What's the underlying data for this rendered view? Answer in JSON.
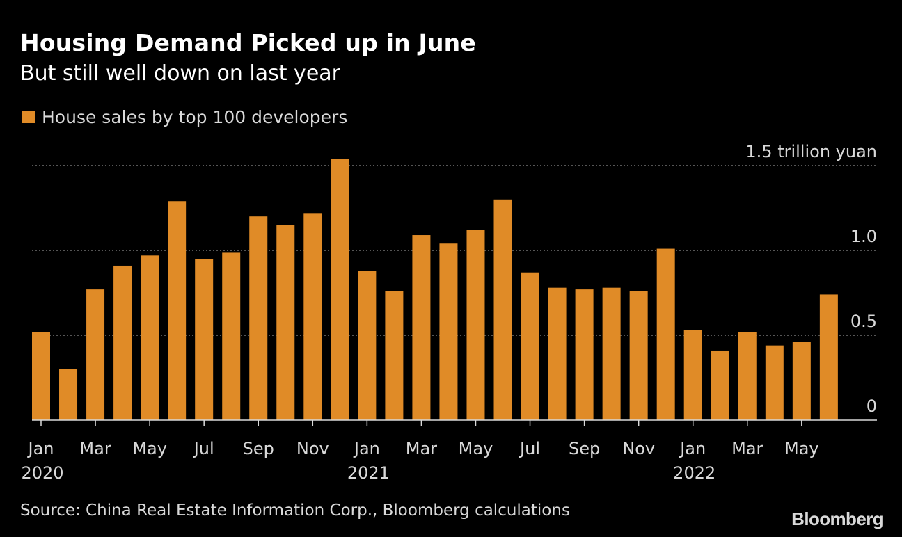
{
  "title": "Housing Demand Picked up in June",
  "subtitle": "But still well down on last year",
  "legend": {
    "label": "House sales by top 100 developers",
    "color": "#e08b27"
  },
  "source": "Source: China Real Estate Information Corp., Bloomberg calculations",
  "brand": "Bloomberg",
  "chart_data": {
    "type": "bar",
    "title": "Housing Demand Picked up in June",
    "subtitle": "But still well down on last year",
    "series": [
      {
        "name": "House sales by top 100 developers",
        "color": "#e08b27",
        "values": [
          0.52,
          0.3,
          0.77,
          0.91,
          0.97,
          1.29,
          0.95,
          0.99,
          1.2,
          1.15,
          1.22,
          1.54,
          0.88,
          0.76,
          1.09,
          1.04,
          1.12,
          1.3,
          0.87,
          0.78,
          0.77,
          0.78,
          0.76,
          1.01,
          0.53,
          0.41,
          0.52,
          0.44,
          0.46,
          0.74
        ]
      }
    ],
    "categories": [
      "Jan 2020",
      "Feb 2020",
      "Mar 2020",
      "Apr 2020",
      "May 2020",
      "Jun 2020",
      "Jul 2020",
      "Aug 2020",
      "Sep 2020",
      "Oct 2020",
      "Nov 2020",
      "Dec 2020",
      "Jan 2021",
      "Feb 2021",
      "Mar 2021",
      "Apr 2021",
      "May 2021",
      "Jun 2021",
      "Jul 2021",
      "Aug 2021",
      "Sep 2021",
      "Oct 2021",
      "Nov 2021",
      "Dec 2021",
      "Jan 2022",
      "Feb 2022",
      "Mar 2022",
      "Apr 2022",
      "May 2022",
      "Jun 2022"
    ],
    "x_tick_labels": [
      {
        "index": 0,
        "month": "Jan",
        "year": "2020"
      },
      {
        "index": 2,
        "month": "Mar",
        "year": ""
      },
      {
        "index": 4,
        "month": "May",
        "year": ""
      },
      {
        "index": 6,
        "month": "Jul",
        "year": ""
      },
      {
        "index": 8,
        "month": "Sep",
        "year": ""
      },
      {
        "index": 10,
        "month": "Nov",
        "year": ""
      },
      {
        "index": 12,
        "month": "Jan",
        "year": "2021"
      },
      {
        "index": 14,
        "month": "Mar",
        "year": ""
      },
      {
        "index": 16,
        "month": "May",
        "year": ""
      },
      {
        "index": 18,
        "month": "Jul",
        "year": ""
      },
      {
        "index": 20,
        "month": "Sep",
        "year": ""
      },
      {
        "index": 22,
        "month": "Nov",
        "year": ""
      },
      {
        "index": 24,
        "month": "Jan",
        "year": "2022"
      },
      {
        "index": 26,
        "month": "Mar",
        "year": ""
      },
      {
        "index": 28,
        "month": "May",
        "year": ""
      }
    ],
    "y_ticks": [
      {
        "value": 0,
        "label": "0"
      },
      {
        "value": 0.5,
        "label": "0.5"
      },
      {
        "value": 1.0,
        "label": "1.0"
      },
      {
        "value": 1.5,
        "label": "1.5 trillion yuan"
      }
    ],
    "ylim": [
      0,
      1.5
    ],
    "grid": "horizontal dotted",
    "legend_position": "top-left"
  }
}
